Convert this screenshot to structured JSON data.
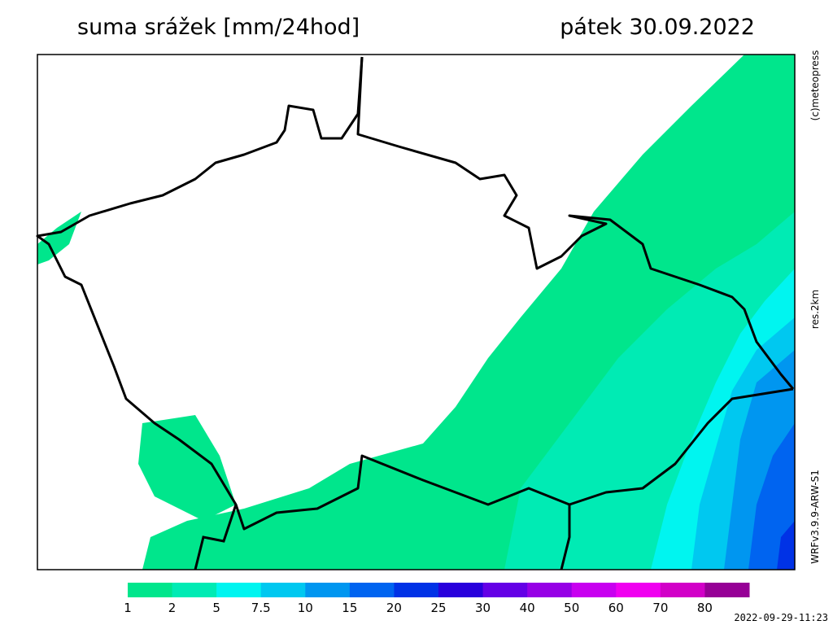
{
  "header": {
    "title": "suma srážek [mm/24hod]",
    "date": "pátek 30.09.2022"
  },
  "side_labels": {
    "copyright": "(c)meteopress",
    "resolution": "res.2km",
    "model": "WRFv3.9.9-ARW-S1"
  },
  "legend": {
    "levels": [
      1,
      2,
      5,
      7.5,
      10,
      15,
      20,
      25,
      30,
      40,
      50,
      60,
      70,
      80
    ],
    "colors": [
      "#00e68c",
      "#00ebb4",
      "#00f5f0",
      "#00c8f0",
      "#0096f0",
      "#0064f0",
      "#0032e6",
      "#2800dc",
      "#6400e6",
      "#9600e6",
      "#c800f0",
      "#f000f0",
      "#d200c8",
      "#960096"
    ]
  },
  "footer": {
    "timestamp": "2022-09-29-11:23"
  }
}
